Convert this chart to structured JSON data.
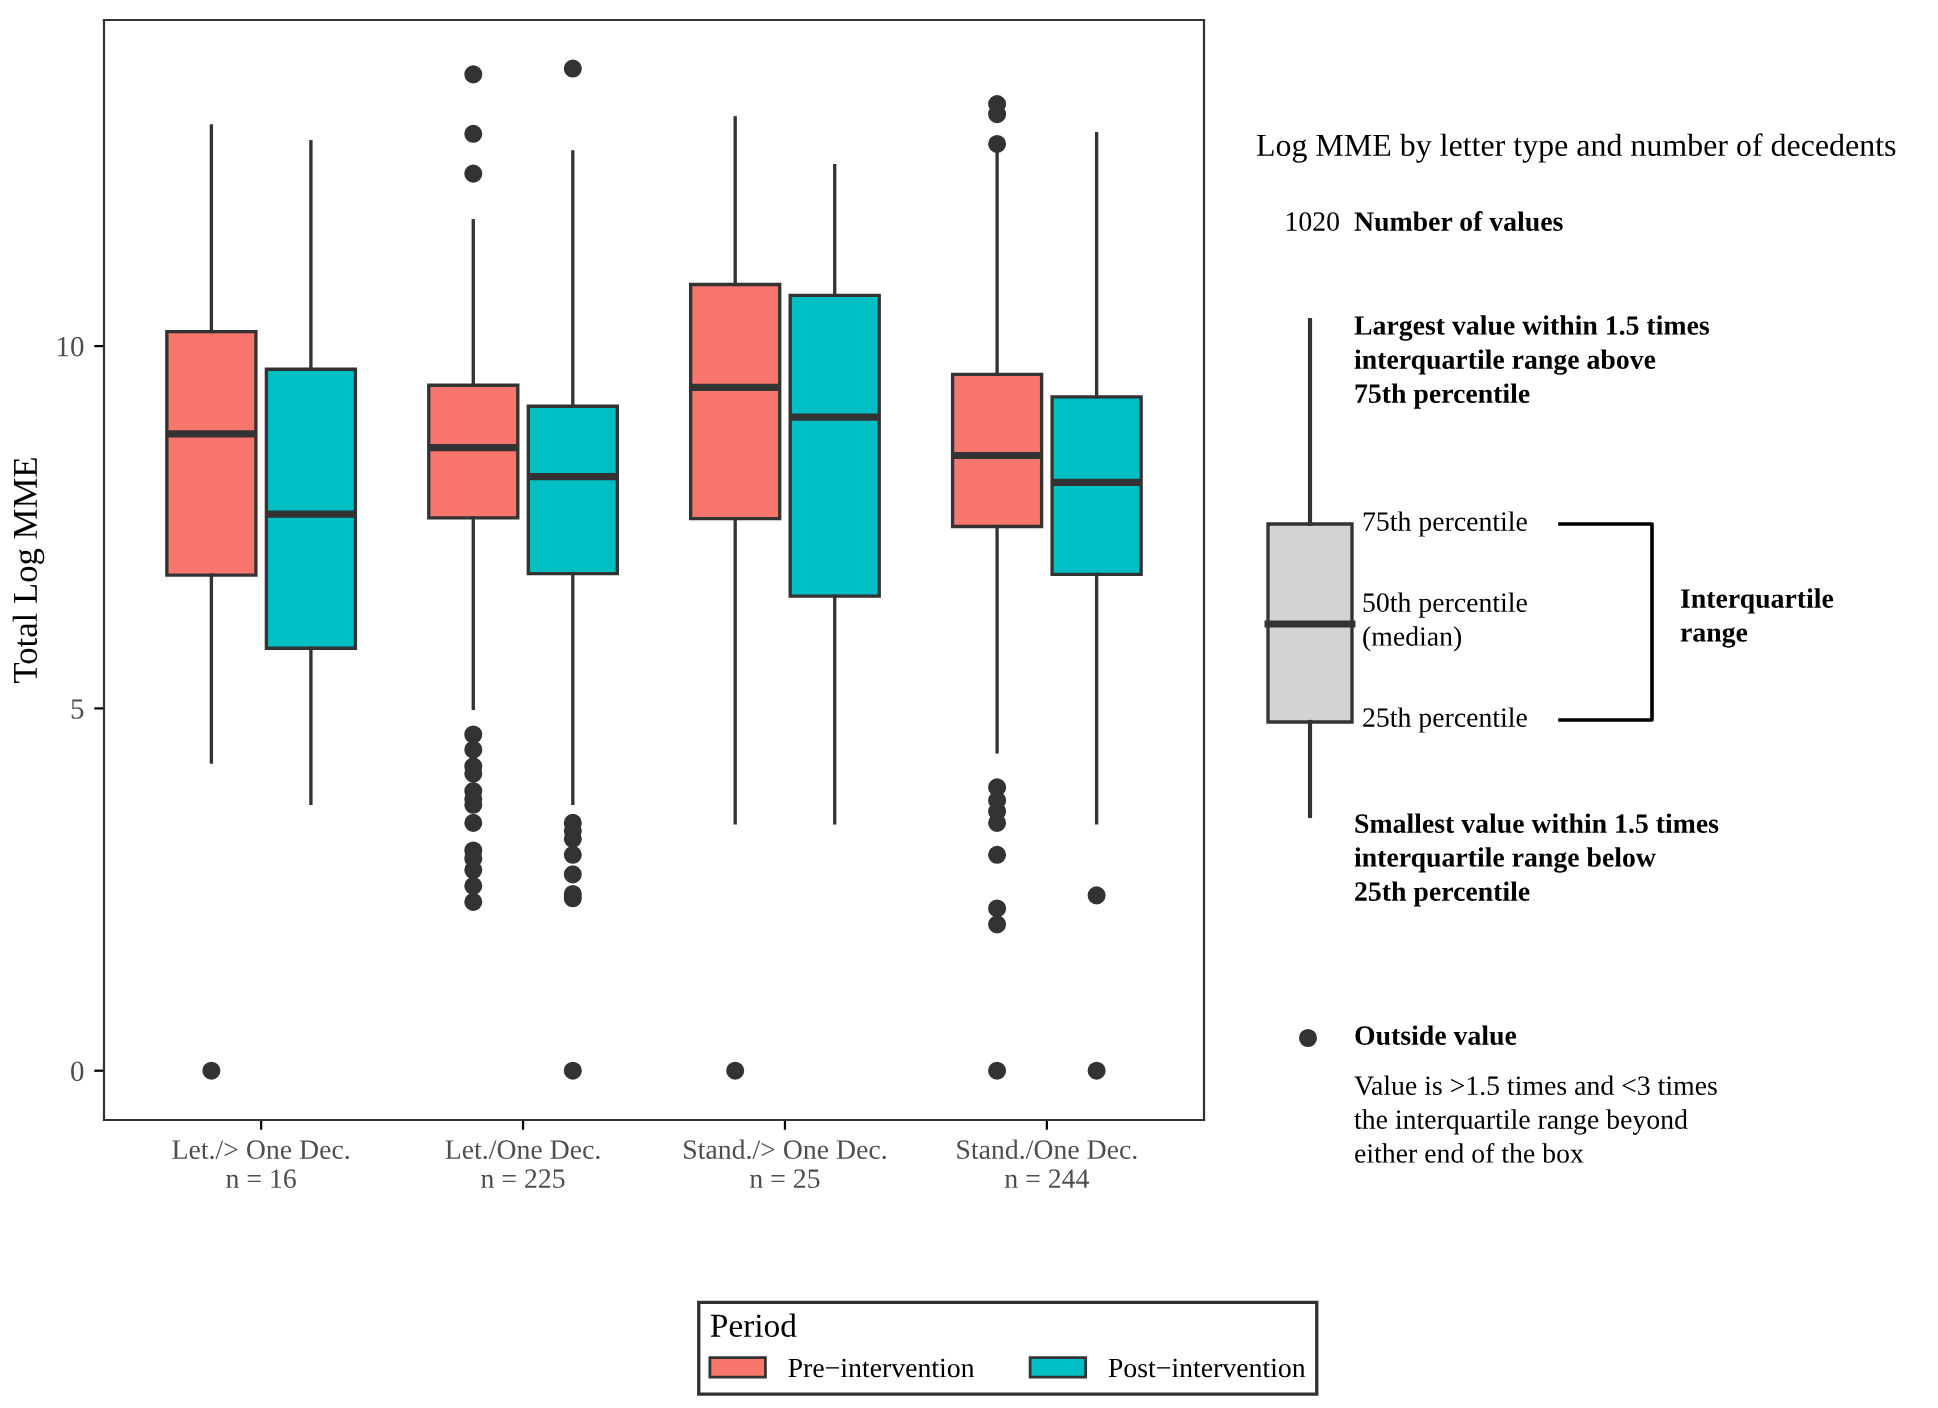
{
  "chart_data": {
    "type": "box",
    "ylabel": "Total Log MME",
    "legend_title": "Period",
    "legend": "bottom",
    "grid": false,
    "categories": [
      "Let./> One Dec.\nn = 16",
      "Let./One Dec.\nn = 225",
      "Stand./> One Dec.\nn = 25",
      "Stand./One Dec.\nn = 244"
    ],
    "ylim": [
      -0.68,
      14.5
    ],
    "yticks": [
      0,
      5,
      10
    ],
    "series": [
      {
        "name": "Pre−intervention",
        "color": "#f8766d",
        "boxes": [
          {
            "low": 4.26,
            "q1": 6.84,
            "median": 8.79,
            "q3": 10.2,
            "high": 13.04,
            "outliers": [
              0
            ]
          },
          {
            "low": 5.0,
            "q1": 7.63,
            "median": 8.6,
            "q3": 9.46,
            "high": 11.73,
            "outliers": [
              13.75,
              12.93,
              12.38,
              4.64,
              4.43,
              4.2,
              4.1,
              3.86,
              3.75,
              3.67,
              3.42,
              3.04,
              2.93,
              2.77,
              2.55,
              2.33
            ]
          },
          {
            "low": 3.42,
            "q1": 7.62,
            "median": 9.43,
            "q3": 10.85,
            "high": 13.15,
            "outliers": [
              0
            ]
          },
          {
            "low": 4.4,
            "q1": 7.51,
            "median": 8.49,
            "q3": 9.61,
            "high": 12.7,
            "outliers": [
              13.34,
              13.2,
              12.79,
              3.91,
              3.73,
              3.58,
              3.42,
              2.98,
              2.24,
              2.02,
              0
            ]
          }
        ]
      },
      {
        "name": "Post−intervention",
        "color": "#00bfc4",
        "boxes": [
          {
            "low": 3.69,
            "q1": 5.83,
            "median": 7.68,
            "q3": 9.68,
            "high": 12.82
          },
          {
            "low": 3.69,
            "q1": 6.86,
            "median": 8.2,
            "q3": 9.17,
            "high": 12.68,
            "outliers": [
              13.83,
              3.42,
              3.31,
              3.2,
              2.98,
              2.71,
              2.44,
              2.38,
              0
            ]
          },
          {
            "low": 3.42,
            "q1": 6.55,
            "median": 9.02,
            "q3": 10.7,
            "high": 12.49
          },
          {
            "low": 3.42,
            "q1": 6.85,
            "median": 8.12,
            "q3": 9.3,
            "high": 12.93,
            "outliers": [
              2.42,
              0
            ]
          }
        ]
      }
    ],
    "annotations": [
      "Log MME by letter type and number of decedents",
      "1020",
      "Number of values",
      "Largest value within 1.5 times\ninterquartile range above\n75th percentile",
      "75th percentile",
      "50th percentile\n(median)",
      "25th percentile",
      "Interquartile\nrange",
      "Smallest value within 1.5 times\ninterquartile range below\n25th percentile",
      "Outside value",
      "Value is >1.5 times and <3 times\nthe interquartile range beyond\neither end of the box"
    ]
  }
}
